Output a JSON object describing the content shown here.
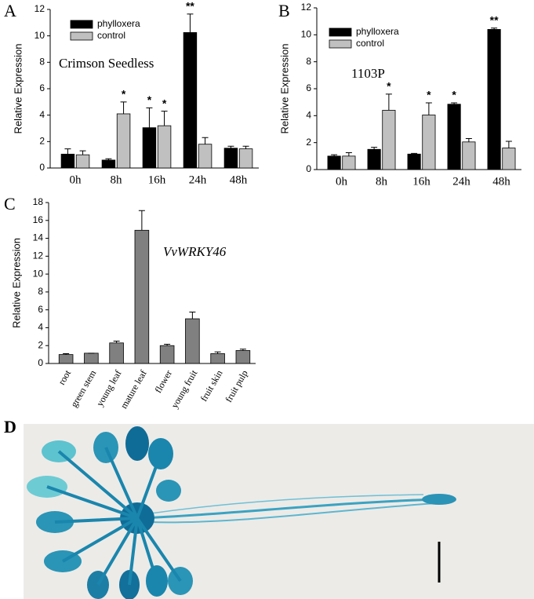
{
  "chart_data": [
    {
      "type": "bar",
      "panel_label": "A",
      "ylabel": "Relative Expression",
      "annotation": "Crimson Seedless",
      "annotation_style": "normal",
      "categories": [
        "0h",
        "8h",
        "16h",
        "24h",
        "48h"
      ],
      "series": [
        {
          "name": "phylloxera",
          "color": "#000000",
          "values": [
            1.05,
            0.6,
            3.05,
            10.25,
            1.5
          ],
          "errors": [
            0.4,
            0.1,
            1.5,
            1.4,
            0.15
          ],
          "significance": [
            null,
            null,
            "*",
            "**",
            null
          ]
        },
        {
          "name": "control",
          "color": "#c0c0c0",
          "values": [
            1.0,
            4.1,
            3.2,
            1.8,
            1.45
          ],
          "errors": [
            0.3,
            0.9,
            1.1,
            0.5,
            0.2
          ],
          "significance": [
            null,
            "*",
            "*",
            null,
            null
          ]
        }
      ],
      "ylim": [
        0,
        12
      ],
      "yticks": [
        0,
        2,
        4,
        6,
        8,
        10,
        12
      ],
      "legend": "upper left"
    },
    {
      "type": "bar",
      "panel_label": "B",
      "ylabel": "Relative Expression",
      "annotation": "1103P",
      "annotation_style": "normal",
      "categories": [
        "0h",
        "8h",
        "16h",
        "24h",
        "48h"
      ],
      "series": [
        {
          "name": "phylloxera",
          "color": "#000000",
          "values": [
            1.0,
            1.5,
            1.15,
            4.85,
            10.4
          ],
          "errors": [
            0.1,
            0.15,
            0.05,
            0.1,
            0.1
          ],
          "significance": [
            null,
            null,
            null,
            "*",
            "**"
          ]
        },
        {
          "name": "control",
          "color": "#c0c0c0",
          "values": [
            1.0,
            4.4,
            4.05,
            2.05,
            1.6
          ],
          "errors": [
            0.25,
            1.2,
            0.9,
            0.25,
            0.5
          ],
          "significance": [
            null,
            "*",
            "*",
            null,
            null
          ]
        }
      ],
      "ylim": [
        0,
        12
      ],
      "yticks": [
        0,
        2,
        4,
        6,
        8,
        10,
        12
      ],
      "legend": "upper left"
    },
    {
      "type": "bar",
      "panel_label": "C",
      "ylabel": "Relative Expression",
      "annotation": "VvWRKY46",
      "annotation_style": "italic",
      "categories": [
        "root",
        "green stem",
        "young leaf",
        "mature leaf",
        "flower",
        "young fruit",
        "fruit skin",
        "fruit pulp"
      ],
      "color": "#808080",
      "values": [
        1.0,
        1.15,
        2.3,
        14.9,
        2.0,
        5.0,
        1.1,
        1.45
      ],
      "errors": [
        0.1,
        0.0,
        0.2,
        2.2,
        0.15,
        0.75,
        0.2,
        0.15
      ],
      "ylim": [
        0,
        18
      ],
      "yticks": [
        0,
        2,
        4,
        6,
        8,
        10,
        12,
        14,
        16,
        18
      ]
    }
  ],
  "photo": {
    "panel_label": "D"
  }
}
